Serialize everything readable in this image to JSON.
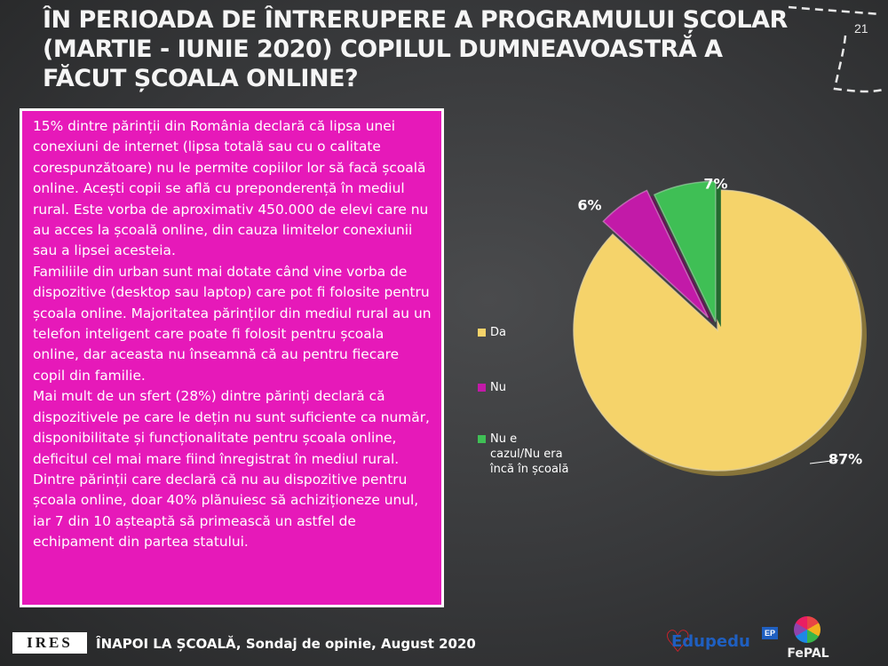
{
  "slide": {
    "title": "În perioada de întrerupere a programului școlar (martie - iunie 2020) copilul dumneavoastră a făcut școala online?",
    "page_number": "21"
  },
  "text_panel": {
    "paragraphs": [
      "15% dintre părinții din România declară că lipsa unei conexiuni de internet (lipsa totală sau cu o calitate corespunzătoare) nu le permite copiilor lor să facă școală online. Acești copii se află cu preponderență în mediul rural. Este vorba de aproximativ 450.000 de elevi care nu au acces la școală online, din cauza limitelor conexiunii sau a lipsei acesteia.",
      "Familiile din urban sunt mai dotate când vine vorba de dispozitive (desktop sau laptop) care pot fi folosite pentru școala online. Majoritatea părinților din mediul rural au un telefon inteligent care poate fi folosit pentru școala online, dar aceasta nu înseamnă că au pentru fiecare copil din familie.",
      "Mai mult de un sfert (28%) dintre părinți declară că dispozitivele pe care le dețin nu sunt suficiente ca număr, disponibilitate și funcționalitate pentru școala online, deficitul cel mai mare fiind înregistrat în mediul rural.",
      "Dintre părinții care declară că nu au dispozitive pentru școala online, doar 40% plănuiesc să achiziționeze unul, iar 7 din 10 așteaptă să primească un astfel de echipament din partea statului."
    ]
  },
  "chart_data": {
    "type": "pie",
    "categories": [
      "Da",
      "Nu",
      "Nu e cazul/Nu era încă în școală"
    ],
    "values": [
      87,
      6,
      7
    ],
    "data_labels": [
      "87%",
      "6%",
      "7%"
    ],
    "colors": [
      "#f5d36a",
      "#c21aa8",
      "#3fbf55"
    ],
    "legend": {
      "position": "left",
      "entries": [
        "Da",
        "Nu",
        "Nu e cazul/Nu era încă în școală"
      ],
      "lines": [
        [
          "Da"
        ],
        [
          "Nu"
        ],
        [
          "Nu e",
          "cazul/Nu era",
          "încă în școală"
        ]
      ]
    },
    "style": "3d-exploded"
  },
  "footer": {
    "logo_text": "IRES",
    "caption": "ÎNAPOI LA ȘCOALĂ, Sondaj de opinie, August 2020",
    "brand_1": "Edupedu",
    "brand_1_badge": "EP",
    "brand_2": "FePAL"
  },
  "theme": {
    "panel_color": "#e619b9",
    "background": "#3a3b3d"
  }
}
